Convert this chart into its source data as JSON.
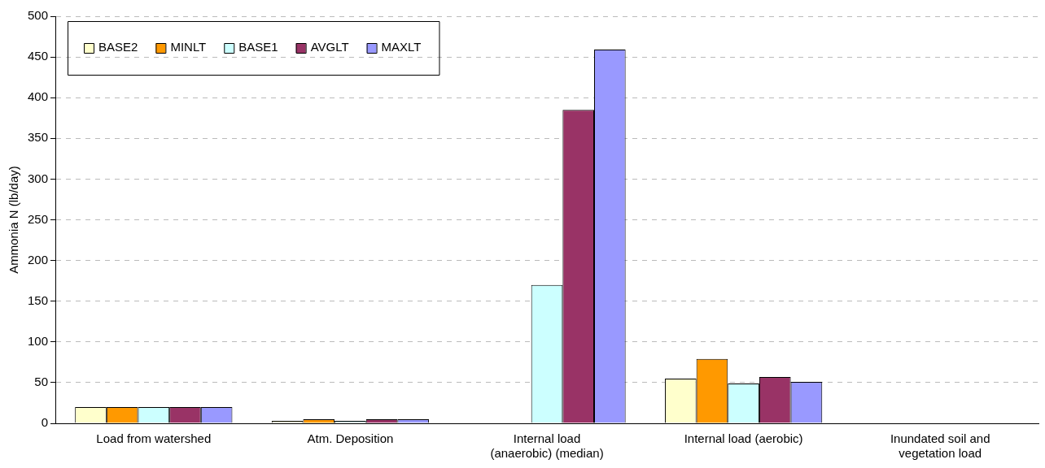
{
  "chart_data": {
    "type": "bar",
    "ylabel": "Ammonia N (lb/day)",
    "categories": [
      "Load from watershed",
      "Atm. Deposition",
      "Internal load (anaerobic) (median)",
      "Internal load (aerobic)",
      "Inundated soil and vegetation load"
    ],
    "series": [
      {
        "name": "BASE2",
        "color": "#ffffcc",
        "values": [
          20,
          3,
          0,
          55,
          0
        ]
      },
      {
        "name": "MINLT",
        "color": "#ff9900",
        "values": [
          20,
          5,
          0,
          79,
          0
        ]
      },
      {
        "name": "BASE1",
        "color": "#ccffff",
        "values": [
          20,
          3,
          170,
          49,
          0
        ]
      },
      {
        "name": "AVGLT",
        "color": "#993366",
        "values": [
          20,
          5,
          385,
          57,
          0
        ]
      },
      {
        "name": "MAXLT",
        "color": "#9999ff",
        "values": [
          20,
          5,
          459,
          51,
          0
        ]
      }
    ],
    "ylim": [
      0,
      500
    ],
    "yticks": [
      0,
      50,
      100,
      150,
      200,
      250,
      300,
      350,
      400,
      450,
      500
    ],
    "grid": "y",
    "legend": "top left"
  }
}
